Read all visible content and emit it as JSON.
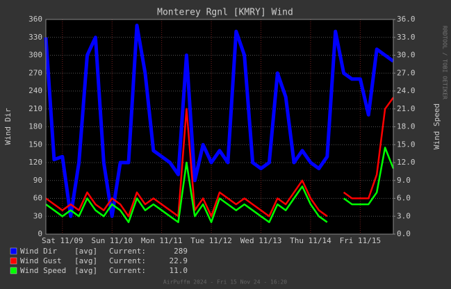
{
  "chart_data": {
    "type": "line",
    "title": "Monterey Rgnl [KMRY] Wind",
    "y_label": "Wind Dir",
    "y2_label": "Wind Speed",
    "footer": "AirPuffm 2024 - Fri 15 Nov 24 - 16:20",
    "side_note": "RRDTOOL / TOBI OETIKER",
    "grid": true,
    "xlim": [
      0,
      168
    ],
    "xticks": [
      {
        "value": 8,
        "label": "Sat 11/09"
      },
      {
        "value": 32,
        "label": "Sun 11/10"
      },
      {
        "value": 56,
        "label": "Mon 11/11"
      },
      {
        "value": 80,
        "label": "Tue 11/12"
      },
      {
        "value": 104,
        "label": "Wed 11/13"
      },
      {
        "value": 128,
        "label": "Thu 11/14"
      },
      {
        "value": 152,
        "label": "Fri 11/15"
      }
    ],
    "x": [
      0,
      4,
      8,
      12,
      16,
      20,
      24,
      28,
      32,
      36,
      40,
      44,
      48,
      52,
      56,
      60,
      64,
      68,
      72,
      76,
      80,
      84,
      88,
      92,
      96,
      100,
      104,
      108,
      112,
      116,
      120,
      124,
      128,
      132,
      136,
      140,
      144,
      148,
      152,
      156,
      160,
      164,
      168
    ],
    "ylim": [
      0,
      360
    ],
    "yticks": [
      0,
      30,
      60,
      90,
      120,
      150,
      180,
      210,
      240,
      270,
      300,
      330,
      360
    ],
    "y2lim": [
      0,
      36
    ],
    "y2ticks": [
      {
        "value": 0,
        "label": "0.0"
      },
      {
        "value": 3,
        "label": "3.0"
      },
      {
        "value": 6,
        "label": "6.0"
      },
      {
        "value": 9,
        "label": "9.0"
      },
      {
        "value": 12,
        "label": "12.0"
      },
      {
        "value": 15,
        "label": "15.0"
      },
      {
        "value": 18,
        "label": "18.0"
      },
      {
        "value": 21,
        "label": "21.0"
      },
      {
        "value": 24,
        "label": "24.0"
      },
      {
        "value": 27,
        "label": "27.0"
      },
      {
        "value": 30,
        "label": "30.0"
      },
      {
        "value": 33,
        "label": "33.0"
      },
      {
        "value": 36,
        "label": "36.0"
      }
    ],
    "legend_kind": "[avg]",
    "legend_current": "Current:",
    "series": [
      {
        "name": "Wind Dir",
        "color": "#0000ff",
        "axis": "y",
        "current": "289",
        "values": [
          330,
          125,
          130,
          30,
          120,
          300,
          330,
          120,
          30,
          120,
          120,
          350,
          270,
          140,
          130,
          120,
          100,
          300,
          90,
          150,
          120,
          140,
          120,
          340,
          300,
          120,
          110,
          120,
          270,
          230,
          120,
          140,
          120,
          110,
          130,
          340,
          270,
          260,
          260,
          200,
          310,
          300,
          290
        ]
      },
      {
        "name": "Wind Gust",
        "color": "#ff0000",
        "axis": "y2",
        "current": "22.9",
        "values": [
          6,
          5,
          4,
          5,
          4,
          7,
          5,
          4,
          6,
          5,
          3,
          7,
          5,
          6,
          5,
          4,
          3,
          21,
          4,
          6,
          3,
          7,
          6,
          5,
          6,
          5,
          4,
          3,
          6,
          5,
          7,
          9,
          6,
          4,
          3,
          null,
          7,
          6,
          6,
          6,
          10,
          21,
          22.9
        ]
      },
      {
        "name": "Wind Speed",
        "color": "#00ff00",
        "axis": "y2",
        "current": "11.0",
        "values": [
          5,
          4,
          3,
          4,
          3,
          6,
          4,
          3,
          5,
          4,
          2,
          6,
          4,
          5,
          4,
          3,
          2,
          12,
          3,
          5,
          2,
          6,
          5,
          4,
          5,
          4,
          3,
          2,
          5,
          4,
          6,
          8,
          5,
          3,
          2,
          null,
          6,
          5,
          5,
          5,
          7,
          14.5,
          11
        ]
      }
    ]
  }
}
